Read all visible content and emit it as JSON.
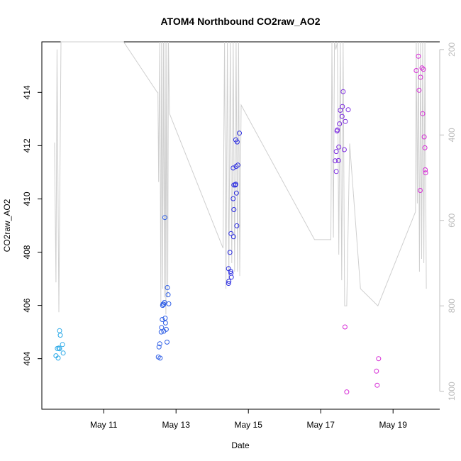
{
  "chart_data": {
    "type": "scatter",
    "title": "ATOM4 Northbound CO2raw_AO2",
    "xlabel": "Date",
    "ylabel": "CO2raw_AO2",
    "x_ticks": [
      {
        "label": "May 11",
        "x": 11.0
      },
      {
        "label": "May 13",
        "x": 13.0
      },
      {
        "label": "May 15",
        "x": 15.0
      },
      {
        "label": "May 17",
        "x": 17.0
      },
      {
        "label": "May 19",
        "x": 19.0
      }
    ],
    "y_ticks": [
      404,
      406,
      408,
      410,
      412,
      414
    ],
    "y2_ticks": [
      200,
      400,
      600,
      800,
      1000
    ],
    "xlim": [
      9.29,
      20.29
    ],
    "ylim": [
      402.1,
      415.9
    ],
    "y2lim": [
      182,
      1042
    ],
    "box": "open-right",
    "series": [
      {
        "color": "#29a9e8",
        "points": [
          [
            9.68,
            404.11
          ],
          [
            9.72,
            404.38
          ],
          [
            9.74,
            404.02
          ],
          [
            9.76,
            404.4
          ],
          [
            9.78,
            404.37
          ],
          [
            9.8,
            404.88
          ],
          [
            9.78,
            405.05
          ],
          [
            9.86,
            404.53
          ],
          [
            9.88,
            404.21
          ]
        ]
      },
      {
        "color": "#2f5fe6",
        "points": [
          [
            12.51,
            404.06
          ],
          [
            12.53,
            404.44
          ],
          [
            12.56,
            404.02
          ],
          [
            12.55,
            404.56
          ],
          [
            12.59,
            405.0
          ],
          [
            12.6,
            405.17
          ],
          [
            12.62,
            405.47
          ],
          [
            12.63,
            406.0
          ],
          [
            12.64,
            406.05
          ],
          [
            12.66,
            406.04
          ],
          [
            12.68,
            406.11
          ],
          [
            12.7,
            405.52
          ],
          [
            12.71,
            405.34
          ],
          [
            12.73,
            405.1
          ],
          [
            12.75,
            404.62
          ],
          [
            12.76,
            406.67
          ],
          [
            12.78,
            406.4
          ],
          [
            12.8,
            406.06
          ],
          [
            12.69,
            409.3
          ],
          [
            12.66,
            405.03
          ]
        ]
      },
      {
        "color": "#2a2be0",
        "points": [
          [
            14.45,
            406.83
          ],
          [
            14.46,
            406.91
          ],
          [
            14.45,
            407.38
          ],
          [
            14.51,
            407.28
          ],
          [
            14.52,
            407.21
          ],
          [
            14.53,
            407.06
          ],
          [
            14.49,
            407.99
          ],
          [
            14.52,
            408.7
          ],
          [
            14.59,
            408.58
          ],
          [
            14.6,
            409.6
          ],
          [
            14.58,
            410.01
          ],
          [
            14.6,
            410.52
          ],
          [
            14.58,
            411.16
          ],
          [
            14.66,
            411.22
          ],
          [
            14.64,
            410.52
          ],
          [
            14.65,
            410.55
          ],
          [
            14.67,
            410.22
          ],
          [
            14.68,
            408.99
          ],
          [
            14.65,
            412.22
          ],
          [
            14.69,
            412.14
          ],
          [
            14.75,
            412.47
          ],
          [
            14.71,
            411.27
          ]
        ]
      },
      {
        "color": "#7c2ae0",
        "points": [
          [
            17.4,
            411.43
          ],
          [
            17.43,
            411.03
          ],
          [
            17.43,
            411.78
          ],
          [
            17.45,
            412.55
          ],
          [
            17.46,
            412.59
          ],
          [
            17.5,
            411.95
          ],
          [
            17.52,
            412.82
          ],
          [
            17.54,
            413.33
          ],
          [
            17.59,
            413.1
          ],
          [
            17.6,
            413.47
          ],
          [
            17.62,
            414.03
          ],
          [
            17.65,
            411.85
          ],
          [
            17.68,
            412.91
          ],
          [
            17.76,
            413.35
          ],
          [
            17.49,
            411.44
          ]
        ]
      },
      {
        "color": "#d62bd6",
        "points": [
          [
            17.67,
            405.19
          ],
          [
            17.72,
            402.75
          ],
          [
            18.54,
            403.53
          ],
          [
            18.56,
            403.0
          ],
          [
            18.6,
            404.0
          ],
          [
            19.64,
            414.82
          ],
          [
            19.7,
            415.36
          ],
          [
            19.72,
            414.08
          ],
          [
            19.76,
            414.57
          ],
          [
            19.8,
            414.92
          ],
          [
            19.82,
            413.2
          ],
          [
            19.86,
            412.33
          ],
          [
            19.84,
            414.87
          ],
          [
            19.88,
            411.92
          ],
          [
            19.89,
            411.09
          ],
          [
            19.9,
            410.98
          ],
          [
            19.75,
            410.32
          ]
        ]
      }
    ],
    "line_series": {
      "color": "#cfcfcf",
      "axis": "right",
      "points": [
        [
          9.64,
          418
        ],
        [
          9.68,
          745
        ],
        [
          9.71,
          200
        ],
        [
          9.76,
          815
        ],
        [
          9.82,
          30
        ],
        [
          9.9,
          30
        ],
        [
          11.55,
          180
        ],
        [
          12.48,
          300
        ],
        [
          12.5,
          300
        ],
        [
          12.52,
          510
        ],
        [
          12.55,
          30
        ],
        [
          12.58,
          800
        ],
        [
          12.6,
          30
        ],
        [
          12.63,
          760
        ],
        [
          12.65,
          30
        ],
        [
          12.68,
          780
        ],
        [
          12.7,
          30
        ],
        [
          12.72,
          820
        ],
        [
          12.74,
          30
        ],
        [
          12.77,
          780
        ],
        [
          12.79,
          30
        ],
        [
          12.82,
          350
        ],
        [
          14.3,
          665
        ],
        [
          14.34,
          30
        ],
        [
          14.38,
          760
        ],
        [
          14.42,
          30
        ],
        [
          14.46,
          740
        ],
        [
          14.5,
          30
        ],
        [
          14.54,
          700
        ],
        [
          14.58,
          30
        ],
        [
          14.62,
          720
        ],
        [
          14.66,
          30
        ],
        [
          14.7,
          720
        ],
        [
          14.73,
          30
        ],
        [
          14.76,
          730
        ],
        [
          14.8,
          330
        ],
        [
          16.83,
          645
        ],
        [
          17.28,
          645
        ],
        [
          17.31,
          30
        ],
        [
          17.35,
          640
        ],
        [
          17.38,
          30
        ],
        [
          17.42,
          200
        ],
        [
          17.46,
          30
        ],
        [
          17.5,
          680
        ],
        [
          17.54,
          30
        ],
        [
          17.58,
          740
        ],
        [
          17.62,
          30
        ],
        [
          17.66,
          800
        ],
        [
          17.72,
          800
        ],
        [
          17.8,
          420
        ],
        [
          18.1,
          760
        ],
        [
          18.58,
          800
        ],
        [
          19.62,
          580
        ],
        [
          19.64,
          30
        ],
        [
          19.67,
          560
        ],
        [
          19.7,
          30
        ],
        [
          19.73,
          720
        ],
        [
          19.76,
          30
        ],
        [
          19.79,
          690
        ],
        [
          19.82,
          30
        ],
        [
          19.85,
          700
        ],
        [
          19.88,
          30
        ],
        [
          19.92,
          760
        ]
      ]
    }
  }
}
